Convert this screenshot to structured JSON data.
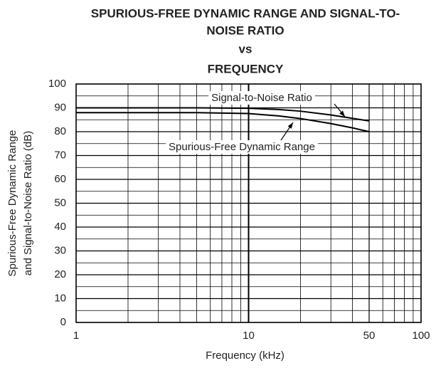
{
  "chart_data": {
    "type": "line",
    "title": [
      "SPURIOUS-FREE DYNAMIC RANGE AND SIGNAL-TO-",
      "NOISE RATIO",
      "vs",
      "FREQUENCY"
    ],
    "xlabel": "Frequency (kHz)",
    "ylabel": [
      "Spurious-Free Dynamic Range",
      "and Signal-to-Noise Ratio (dB)"
    ],
    "x": [
      1,
      2,
      5,
      10,
      15,
      20,
      30,
      40,
      50
    ],
    "series": [
      {
        "name": "Signal-to-Noise Ratio",
        "color": "#000000",
        "values": [
          90,
          90,
          90,
          89.8,
          89.3,
          88.6,
          87,
          85.6,
          84.5
        ]
      },
      {
        "name": "Spurious-Free Dynamic Range",
        "color": "#000000",
        "values": [
          88,
          88,
          88,
          87.6,
          86.6,
          85.5,
          83.4,
          81.6,
          80
        ]
      }
    ],
    "xscale": "log",
    "xlim": [
      1,
      100
    ],
    "xticks": [
      1,
      10,
      50,
      100
    ],
    "xminorticks": [
      2,
      3,
      4,
      5,
      6,
      7,
      8,
      9,
      20,
      30,
      40,
      60,
      70,
      80,
      90
    ],
    "ylim": [
      0,
      100
    ],
    "yticks": [
      0,
      10,
      20,
      30,
      40,
      50,
      60,
      70,
      80,
      90,
      100
    ],
    "yminorticks": [
      5,
      15,
      25,
      35,
      45,
      55,
      65,
      75,
      85,
      95
    ],
    "grid": true
  }
}
